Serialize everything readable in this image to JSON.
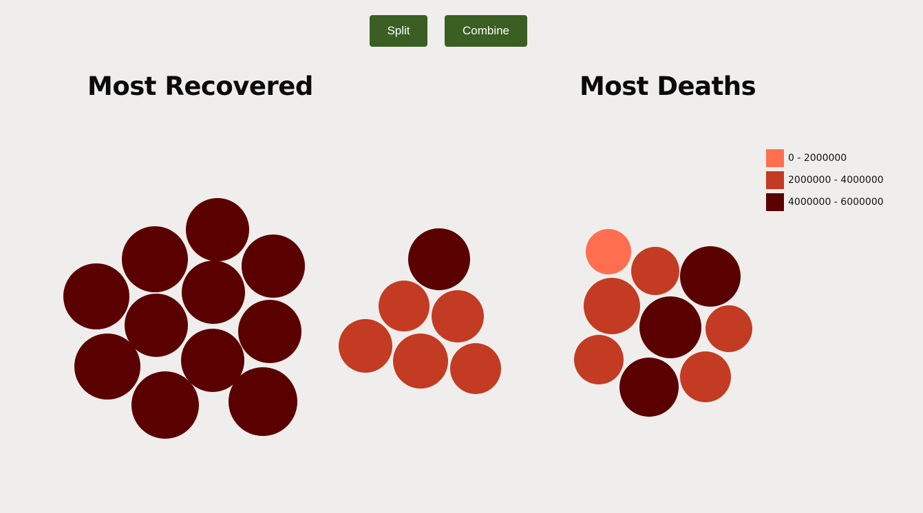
{
  "buttons": {
    "split_label": "Split",
    "combine_label": "Combine"
  },
  "chart_data": {
    "type": "bubble",
    "groups": [
      {
        "title": "Most Recovered"
      },
      {
        "title": "Most Deaths"
      }
    ],
    "legend": {
      "bins": [
        {
          "label": "0 - 2000000",
          "min": 0,
          "max": 2000000,
          "color": "#ff6f4f"
        },
        {
          "label": "2000000 - 4000000",
          "min": 2000000,
          "max": 4000000,
          "color": "#c33b22"
        },
        {
          "label": "4000000 - 6000000",
          "min": 4000000,
          "max": 6000000,
          "color": "#5b0000"
        }
      ]
    }
  }
}
